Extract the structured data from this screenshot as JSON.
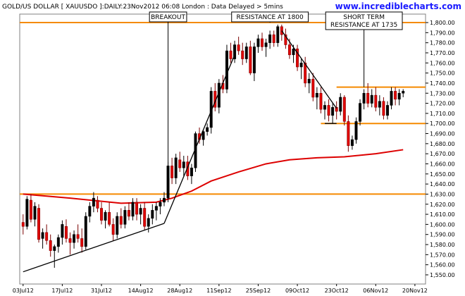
{
  "header": {
    "title": "GOLD/US DOLLAR [ XAUUSDO ]:DAILY:23Nov2012 06:08 London : Data Delayed > 5mins",
    "site": "www.incrediblecharts.com"
  },
  "colors": {
    "up_candle": "#000000",
    "down_candle": "#e00000",
    "candle_body_down": "#e00000",
    "moving_average": "#dd0000",
    "horizontal_level": "#f58a00",
    "trendline": "#000000",
    "annotation_box": "#000000",
    "site_name": "#1b1bff",
    "grid": "#cccccc"
  },
  "annotations": [
    {
      "id": "breakout",
      "lines": [
        "BREAKOUT"
      ]
    },
    {
      "id": "resistance-1800",
      "lines": [
        "RESISTANCE AT 1800"
      ]
    },
    {
      "id": "resistance-1735",
      "lines": [
        "SHORT TERM",
        "RESISTANCE AT 1735"
      ]
    }
  ],
  "chart_data": {
    "type": "candlestick",
    "title": "GOLD/US DOLLAR [ XAUUSDO ]:DAILY:23Nov2012 06:08 London : Data Delayed > 5mins",
    "x_tick_labels": [
      "03Jul12",
      "17Jul12",
      "31Jul12",
      "14Aug12",
      "28Aug12",
      "11Sep12",
      "25Sep12",
      "09Oct12",
      "23Oct12",
      "06Nov12",
      "20Nov12"
    ],
    "y_tick_labels": [
      "1,550.00",
      "1,560.00",
      "1,570.00",
      "1,580.00",
      "1,590.00",
      "1,600.00",
      "1,610.00",
      "1,620.00",
      "1,630.00",
      "1,640.00",
      "1,650.00",
      "1,660.00",
      "1,670.00",
      "1,680.00",
      "1,690.00",
      "1,700.00",
      "1,710.00",
      "1,720.00",
      "1,730.00",
      "1,740.00",
      "1,750.00",
      "1,760.00",
      "1,770.00",
      "1,780.00",
      "1,790.00",
      "1,800.00"
    ],
    "ylim": [
      1543,
      1807
    ],
    "y_axis_side": "right",
    "grid": false,
    "candles": [
      {
        "o": 1602,
        "h": 1610,
        "l": 1590,
        "c": 1598
      },
      {
        "o": 1598,
        "h": 1628,
        "l": 1595,
        "c": 1625
      },
      {
        "o": 1624,
        "h": 1630,
        "l": 1602,
        "c": 1605
      },
      {
        "o": 1605,
        "h": 1622,
        "l": 1598,
        "c": 1618
      },
      {
        "o": 1616,
        "h": 1620,
        "l": 1582,
        "c": 1585
      },
      {
        "o": 1586,
        "h": 1596,
        "l": 1576,
        "c": 1592
      },
      {
        "o": 1592,
        "h": 1600,
        "l": 1580,
        "c": 1584
      },
      {
        "o": 1584,
        "h": 1590,
        "l": 1568,
        "c": 1574
      },
      {
        "o": 1574,
        "h": 1580,
        "l": 1557,
        "c": 1578
      },
      {
        "o": 1578,
        "h": 1590,
        "l": 1572,
        "c": 1587
      },
      {
        "o": 1587,
        "h": 1604,
        "l": 1580,
        "c": 1600
      },
      {
        "o": 1598,
        "h": 1605,
        "l": 1582,
        "c": 1586
      },
      {
        "o": 1586,
        "h": 1592,
        "l": 1570,
        "c": 1582
      },
      {
        "o": 1582,
        "h": 1594,
        "l": 1576,
        "c": 1590
      },
      {
        "o": 1590,
        "h": 1600,
        "l": 1582,
        "c": 1586
      },
      {
        "o": 1586,
        "h": 1596,
        "l": 1572,
        "c": 1578
      },
      {
        "o": 1578,
        "h": 1612,
        "l": 1575,
        "c": 1608
      },
      {
        "o": 1608,
        "h": 1622,
        "l": 1602,
        "c": 1618
      },
      {
        "o": 1618,
        "h": 1632,
        "l": 1612,
        "c": 1626
      },
      {
        "o": 1624,
        "h": 1628,
        "l": 1612,
        "c": 1616
      },
      {
        "o": 1616,
        "h": 1622,
        "l": 1600,
        "c": 1604
      },
      {
        "o": 1604,
        "h": 1614,
        "l": 1596,
        "c": 1612
      },
      {
        "o": 1612,
        "h": 1622,
        "l": 1598,
        "c": 1600
      },
      {
        "o": 1600,
        "h": 1606,
        "l": 1584,
        "c": 1590
      },
      {
        "o": 1590,
        "h": 1612,
        "l": 1586,
        "c": 1608
      },
      {
        "o": 1608,
        "h": 1616,
        "l": 1596,
        "c": 1600
      },
      {
        "o": 1600,
        "h": 1618,
        "l": 1596,
        "c": 1614
      },
      {
        "o": 1614,
        "h": 1622,
        "l": 1604,
        "c": 1608
      },
      {
        "o": 1608,
        "h": 1626,
        "l": 1604,
        "c": 1622
      },
      {
        "o": 1622,
        "h": 1626,
        "l": 1604,
        "c": 1610
      },
      {
        "o": 1610,
        "h": 1620,
        "l": 1600,
        "c": 1616
      },
      {
        "o": 1616,
        "h": 1622,
        "l": 1594,
        "c": 1598
      },
      {
        "o": 1598,
        "h": 1610,
        "l": 1592,
        "c": 1606
      },
      {
        "o": 1606,
        "h": 1620,
        "l": 1600,
        "c": 1614
      },
      {
        "o": 1614,
        "h": 1622,
        "l": 1604,
        "c": 1618
      },
      {
        "o": 1618,
        "h": 1626,
        "l": 1610,
        "c": 1622
      },
      {
        "o": 1622,
        "h": 1632,
        "l": 1618,
        "c": 1626
      },
      {
        "o": 1626,
        "h": 1662,
        "l": 1622,
        "c": 1658
      },
      {
        "o": 1658,
        "h": 1666,
        "l": 1640,
        "c": 1646
      },
      {
        "o": 1646,
        "h": 1670,
        "l": 1640,
        "c": 1666
      },
      {
        "o": 1664,
        "h": 1672,
        "l": 1652,
        "c": 1656
      },
      {
        "o": 1656,
        "h": 1668,
        "l": 1648,
        "c": 1662
      },
      {
        "o": 1662,
        "h": 1668,
        "l": 1644,
        "c": 1648
      },
      {
        "o": 1648,
        "h": 1660,
        "l": 1640,
        "c": 1656
      },
      {
        "o": 1656,
        "h": 1692,
        "l": 1652,
        "c": 1690
      },
      {
        "o": 1690,
        "h": 1696,
        "l": 1680,
        "c": 1684
      },
      {
        "o": 1684,
        "h": 1694,
        "l": 1678,
        "c": 1692
      },
      {
        "o": 1692,
        "h": 1700,
        "l": 1688,
        "c": 1696
      },
      {
        "o": 1696,
        "h": 1736,
        "l": 1690,
        "c": 1732
      },
      {
        "o": 1732,
        "h": 1740,
        "l": 1712,
        "c": 1716
      },
      {
        "o": 1716,
        "h": 1744,
        "l": 1710,
        "c": 1740
      },
      {
        "o": 1740,
        "h": 1748,
        "l": 1730,
        "c": 1734
      },
      {
        "o": 1734,
        "h": 1778,
        "l": 1730,
        "c": 1772
      },
      {
        "o": 1772,
        "h": 1780,
        "l": 1760,
        "c": 1764
      },
      {
        "o": 1764,
        "h": 1782,
        "l": 1760,
        "c": 1778
      },
      {
        "o": 1778,
        "h": 1786,
        "l": 1768,
        "c": 1772
      },
      {
        "o": 1772,
        "h": 1780,
        "l": 1758,
        "c": 1764
      },
      {
        "o": 1764,
        "h": 1780,
        "l": 1760,
        "c": 1776
      },
      {
        "o": 1776,
        "h": 1782,
        "l": 1748,
        "c": 1750
      },
      {
        "o": 1750,
        "h": 1780,
        "l": 1742,
        "c": 1776
      },
      {
        "o": 1776,
        "h": 1788,
        "l": 1770,
        "c": 1784
      },
      {
        "o": 1784,
        "h": 1790,
        "l": 1772,
        "c": 1776
      },
      {
        "o": 1776,
        "h": 1784,
        "l": 1766,
        "c": 1780
      },
      {
        "o": 1780,
        "h": 1792,
        "l": 1774,
        "c": 1788
      },
      {
        "o": 1788,
        "h": 1792,
        "l": 1776,
        "c": 1780
      },
      {
        "o": 1780,
        "h": 1798,
        "l": 1776,
        "c": 1796
      },
      {
        "o": 1796,
        "h": 1798,
        "l": 1782,
        "c": 1788
      },
      {
        "o": 1788,
        "h": 1794,
        "l": 1774,
        "c": 1778
      },
      {
        "o": 1778,
        "h": 1784,
        "l": 1764,
        "c": 1768
      },
      {
        "o": 1768,
        "h": 1778,
        "l": 1760,
        "c": 1774
      },
      {
        "o": 1774,
        "h": 1778,
        "l": 1752,
        "c": 1756
      },
      {
        "o": 1756,
        "h": 1764,
        "l": 1744,
        "c": 1760
      },
      {
        "o": 1760,
        "h": 1766,
        "l": 1736,
        "c": 1740
      },
      {
        "o": 1740,
        "h": 1750,
        "l": 1730,
        "c": 1744
      },
      {
        "o": 1744,
        "h": 1750,
        "l": 1722,
        "c": 1726
      },
      {
        "o": 1726,
        "h": 1736,
        "l": 1714,
        "c": 1730
      },
      {
        "o": 1730,
        "h": 1736,
        "l": 1710,
        "c": 1714
      },
      {
        "o": 1714,
        "h": 1722,
        "l": 1704,
        "c": 1718
      },
      {
        "o": 1718,
        "h": 1724,
        "l": 1702,
        "c": 1708
      },
      {
        "o": 1708,
        "h": 1720,
        "l": 1700,
        "c": 1716
      },
      {
        "o": 1716,
        "h": 1722,
        "l": 1704,
        "c": 1712
      },
      {
        "o": 1712,
        "h": 1730,
        "l": 1708,
        "c": 1726
      },
      {
        "o": 1726,
        "h": 1728,
        "l": 1698,
        "c": 1702
      },
      {
        "o": 1702,
        "h": 1708,
        "l": 1672,
        "c": 1678
      },
      {
        "o": 1678,
        "h": 1688,
        "l": 1674,
        "c": 1684
      },
      {
        "o": 1684,
        "h": 1706,
        "l": 1680,
        "c": 1702
      },
      {
        "o": 1702,
        "h": 1724,
        "l": 1698,
        "c": 1720
      },
      {
        "o": 1720,
        "h": 1734,
        "l": 1714,
        "c": 1730
      },
      {
        "o": 1730,
        "h": 1740,
        "l": 1716,
        "c": 1720
      },
      {
        "o": 1720,
        "h": 1734,
        "l": 1716,
        "c": 1728
      },
      {
        "o": 1728,
        "h": 1736,
        "l": 1712,
        "c": 1716
      },
      {
        "o": 1716,
        "h": 1728,
        "l": 1708,
        "c": 1722
      },
      {
        "o": 1722,
        "h": 1726,
        "l": 1704,
        "c": 1708
      },
      {
        "o": 1708,
        "h": 1722,
        "l": 1704,
        "c": 1718
      },
      {
        "o": 1718,
        "h": 1736,
        "l": 1714,
        "c": 1732
      },
      {
        "o": 1732,
        "h": 1736,
        "l": 1718,
        "c": 1724
      },
      {
        "o": 1724,
        "h": 1734,
        "l": 1718,
        "c": 1730
      },
      {
        "o": 1730,
        "h": 1734,
        "l": 1726,
        "c": 1732
      }
    ],
    "moving_average": [
      [
        0,
        1630
      ],
      [
        12,
        1626
      ],
      [
        25,
        1621
      ],
      [
        34,
        1622
      ],
      [
        38,
        1626
      ],
      [
        43,
        1633
      ],
      [
        48,
        1643
      ],
      [
        55,
        1652
      ],
      [
        62,
        1660
      ],
      [
        68,
        1664
      ],
      [
        75,
        1666
      ],
      [
        82,
        1667
      ],
      [
        90,
        1670
      ],
      [
        97,
        1674
      ]
    ],
    "horizontal_levels": [
      {
        "value": 1800,
        "from_bar": 0,
        "to_bar": 99
      },
      {
        "value": 1630,
        "from_bar": 0,
        "to_bar": 99
      },
      {
        "value": 1736,
        "from_bar": 80,
        "to_bar": 99
      },
      {
        "value": 1700,
        "from_bar": 76,
        "to_bar": 99
      }
    ],
    "trendlines": [
      {
        "from": [
          0,
          1553
        ],
        "to": [
          36,
          1601
        ]
      },
      {
        "from": [
          36,
          1601
        ],
        "to": [
          54,
          1768
        ]
      },
      {
        "from": [
          66,
          1792
        ],
        "to": [
          80,
          1715
        ]
      },
      {
        "from": [
          77,
          1700
        ],
        "to": [
          80,
          1700
        ]
      }
    ],
    "annotation_targets": {
      "breakout": {
        "bar": 37,
        "value": 1628
      },
      "resistance-1800": {
        "bar": 63,
        "value": 1800
      },
      "resistance-1735": {
        "bar": 87,
        "value": 1736
      }
    }
  }
}
